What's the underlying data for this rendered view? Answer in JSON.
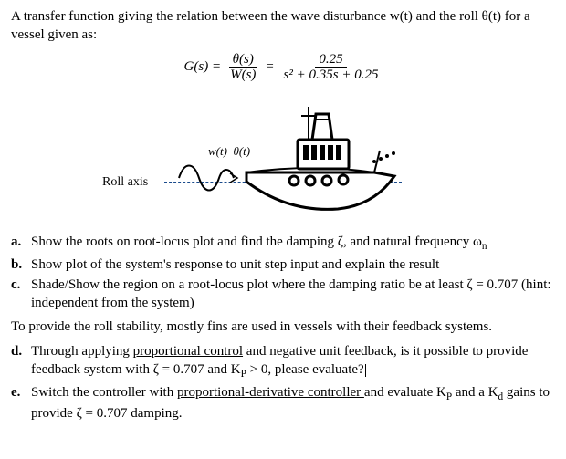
{
  "intro": "A transfer function giving the relation between the wave disturbance w(t)  and the roll θ(t) for a vessel given as:",
  "equation": {
    "lhs": "G(s) =",
    "frac1_num": "θ(s)",
    "frac1_den": "W(s)",
    "eq_sign": "=",
    "frac2_num": "0.25",
    "frac2_den": "s² + 0.35s + 0.25"
  },
  "figure": {
    "roll_axis_label": "Roll axis",
    "wave_label_w": "w(t)",
    "wave_label_theta": "θ(t)",
    "colors": {
      "boat_fill": "#000000",
      "boat_outline": "#000000",
      "axis_dash": "#1a4b8c",
      "wave_stroke": "#000000"
    }
  },
  "parts1": [
    {
      "letter": "a.",
      "html": "Show the roots on root-locus plot and find the damping ζ, and natural frequency ω<sub>n</sub>"
    },
    {
      "letter": "b.",
      "html": "Show plot of the system's response to unit step input and explain the result"
    },
    {
      "letter": "c.",
      "html": "Shade/Show the region on a root-locus plot where the damping ratio be at least ζ = 0.707 (hint: independent from the system)"
    }
  ],
  "mid_paragraph": "To provide the roll stability, mostly fins are used in vessels with their feedback systems.",
  "parts2": [
    {
      "letter": "d.",
      "html": "Through applying <span class=\"underline\">proportional control</span> and negative unit feedback, is it possible to provide feedback system with ζ = 0.707 and K<sub>P</sub> > 0, please evaluate?<span class=\"cursor\" data-name=\"text-cursor\" data-interactable=\"false\"></span>"
    },
    {
      "letter": "e.",
      "html": "Switch the controller with <span class=\"underline\">proportional-derivative controller </span>and evaluate K<sub>P</sub> and a K<sub>d</sub> gains to provide ζ = 0.707 damping."
    }
  ]
}
